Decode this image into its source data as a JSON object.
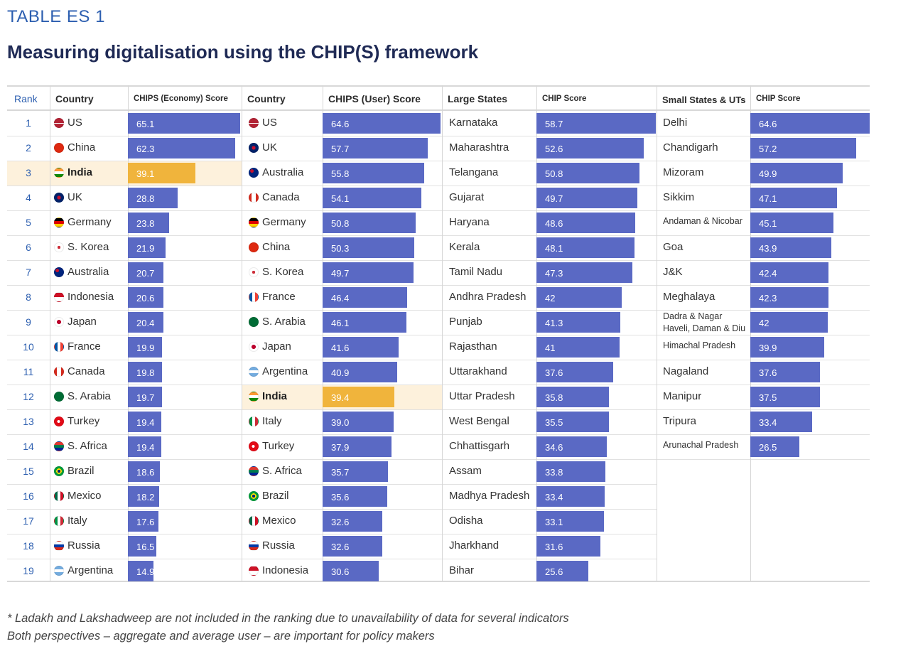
{
  "header": {
    "label": "TABLE  ES 1",
    "title": "Measuring digitalisation using the CHIP(S) framework"
  },
  "columns": {
    "rank": "Rank",
    "country1": "Country",
    "economy_score": "CHIPS (Economy) Score",
    "country2": "Country",
    "user_score": "CHIPS (User) Score",
    "large_states": "Large States",
    "chip_score1": "CHIP Score",
    "small_states": "Small States & UTs",
    "chip_score2": "CHIP Score"
  },
  "economy": [
    {
      "rank": "1",
      "country": "US",
      "score": "65.1",
      "v": 65.1,
      "flag": "us"
    },
    {
      "rank": "2",
      "country": "China",
      "score": "62.3",
      "v": 62.3,
      "flag": "cn"
    },
    {
      "rank": "3",
      "country": "India",
      "score": "39.1",
      "v": 39.1,
      "flag": "in",
      "highlight": true
    },
    {
      "rank": "4",
      "country": "UK",
      "score": "28.8",
      "v": 28.8,
      "flag": "uk"
    },
    {
      "rank": "5",
      "country": "Germany",
      "score": "23.8",
      "v": 23.8,
      "flag": "de"
    },
    {
      "rank": "6",
      "country": "S. Korea",
      "score": "21.9",
      "v": 21.9,
      "flag": "kr"
    },
    {
      "rank": "7",
      "country": "Australia",
      "score": "20.7",
      "v": 20.7,
      "flag": "au"
    },
    {
      "rank": "8",
      "country": "Indonesia",
      "score": "20.6",
      "v": 20.6,
      "flag": "id"
    },
    {
      "rank": "9",
      "country": "Japan",
      "score": "20.4",
      "v": 20.4,
      "flag": "jp"
    },
    {
      "rank": "10",
      "country": "France",
      "score": "19.9",
      "v": 19.9,
      "flag": "fr"
    },
    {
      "rank": "11",
      "country": "Canada",
      "score": "19.8",
      "v": 19.8,
      "flag": "ca"
    },
    {
      "rank": "12",
      "country": "S. Arabia",
      "score": "19.7",
      "v": 19.7,
      "flag": "sa"
    },
    {
      "rank": "13",
      "country": "Turkey",
      "score": "19.4",
      "v": 19.4,
      "flag": "tr"
    },
    {
      "rank": "14",
      "country": "S. Africa",
      "score": "19.4",
      "v": 19.4,
      "flag": "za"
    },
    {
      "rank": "15",
      "country": "Brazil",
      "score": "18.6",
      "v": 18.6,
      "flag": "br"
    },
    {
      "rank": "16",
      "country": "Mexico",
      "score": "18.2",
      "v": 18.2,
      "flag": "mx"
    },
    {
      "rank": "17",
      "country": "Italy",
      "score": "17.6",
      "v": 17.6,
      "flag": "it"
    },
    {
      "rank": "18",
      "country": "Russia",
      "score": "16.5",
      "v": 16.5,
      "flag": "ru"
    },
    {
      "rank": "19",
      "country": "Argentina",
      "score": "14.9",
      "v": 14.9,
      "flag": "ar"
    }
  ],
  "user": [
    {
      "country": "US",
      "score": "64.6",
      "v": 64.6,
      "flag": "us"
    },
    {
      "country": "UK",
      "score": "57.7",
      "v": 57.7,
      "flag": "uk"
    },
    {
      "country": "Australia",
      "score": "55.8",
      "v": 55.8,
      "flag": "au"
    },
    {
      "country": "Canada",
      "score": "54.1",
      "v": 54.1,
      "flag": "ca"
    },
    {
      "country": "Germany",
      "score": "50.8",
      "v": 50.8,
      "flag": "de"
    },
    {
      "country": "China",
      "score": "50.3",
      "v": 50.3,
      "flag": "cn"
    },
    {
      "country": "S. Korea",
      "score": "49.7",
      "v": 49.7,
      "flag": "kr"
    },
    {
      "country": "France",
      "score": "46.4",
      "v": 46.4,
      "flag": "fr"
    },
    {
      "country": "S. Arabia",
      "score": "46.1",
      "v": 46.1,
      "flag": "sa"
    },
    {
      "country": "Japan",
      "score": "41.6",
      "v": 41.6,
      "flag": "jp"
    },
    {
      "country": "Argentina",
      "score": "40.9",
      "v": 40.9,
      "flag": "ar"
    },
    {
      "country": "India",
      "score": "39.4",
      "v": 39.4,
      "flag": "in",
      "highlight": true
    },
    {
      "country": "Italy",
      "score": "39.0",
      "v": 39.0,
      "flag": "it"
    },
    {
      "country": "Turkey",
      "score": "37.9",
      "v": 37.9,
      "flag": "tr"
    },
    {
      "country": "S. Africa",
      "score": "35.7",
      "v": 35.7,
      "flag": "za"
    },
    {
      "country": "Brazil",
      "score": "35.6",
      "v": 35.6,
      "flag": "br"
    },
    {
      "country": "Mexico",
      "score": "32.6",
      "v": 32.6,
      "flag": "mx"
    },
    {
      "country": "Russia",
      "score": "32.6",
      "v": 32.6,
      "flag": "ru"
    },
    {
      "country": "Indonesia",
      "score": "30.6",
      "v": 30.6,
      "flag": "id"
    }
  ],
  "large_states": [
    {
      "name": "Karnataka",
      "score": "58.7",
      "v": 58.7
    },
    {
      "name": "Maharashtra",
      "score": "52.6",
      "v": 52.6
    },
    {
      "name": "Telangana",
      "score": "50.8",
      "v": 50.8
    },
    {
      "name": "Gujarat",
      "score": "49.7",
      "v": 49.7
    },
    {
      "name": "Haryana",
      "score": "48.6",
      "v": 48.6
    },
    {
      "name": "Kerala",
      "score": "48.1",
      "v": 48.1
    },
    {
      "name": "Tamil Nadu",
      "score": "47.3",
      "v": 47.3
    },
    {
      "name": "Andhra Pradesh",
      "score": "42",
      "v": 42
    },
    {
      "name": "Punjab",
      "score": "41.3",
      "v": 41.3
    },
    {
      "name": "Rajasthan",
      "score": "41",
      "v": 41
    },
    {
      "name": "Uttarakhand",
      "score": "37.6",
      "v": 37.6
    },
    {
      "name": "Uttar Pradesh",
      "score": "35.8",
      "v": 35.8
    },
    {
      "name": "West Bengal",
      "score": "35.5",
      "v": 35.5
    },
    {
      "name": "Chhattisgarh",
      "score": "34.6",
      "v": 34.6
    },
    {
      "name": "Assam",
      "score": "33.8",
      "v": 33.8
    },
    {
      "name": "Madhya Pradesh",
      "score": "33.4",
      "v": 33.4
    },
    {
      "name": "Odisha",
      "score": "33.1",
      "v": 33.1
    },
    {
      "name": "Jharkhand",
      "score": "31.6",
      "v": 31.6
    },
    {
      "name": "Bihar",
      "score": "25.6",
      "v": 25.6
    }
  ],
  "small_states": [
    {
      "name": "Delhi",
      "score": "64.6",
      "v": 64.6
    },
    {
      "name": "Chandigarh",
      "score": "57.2",
      "v": 57.2
    },
    {
      "name": "Mizoram",
      "score": "49.9",
      "v": 49.9
    },
    {
      "name": "Sikkim",
      "score": "47.1",
      "v": 47.1
    },
    {
      "name": "Andaman & Nicobar",
      "score": "45.1",
      "v": 45.1,
      "small": true
    },
    {
      "name": "Goa",
      "score": "43.9",
      "v": 43.9
    },
    {
      "name": "J&K",
      "score": "42.4",
      "v": 42.4
    },
    {
      "name": "Meghalaya",
      "score": "42.3",
      "v": 42.3
    },
    {
      "name": "Dadra & Nagar Haveli, Daman & Diu",
      "line1": "Dadra & Nagar",
      "line2": "Haveli, Daman & Diu",
      "score": "42",
      "v": 42,
      "two": true
    },
    {
      "name": "Himachal Pradesh",
      "score": "39.9",
      "v": 39.9,
      "small": true
    },
    {
      "name": "Nagaland",
      "score": "37.6",
      "v": 37.6
    },
    {
      "name": "Manipur",
      "score": "37.5",
      "v": 37.5
    },
    {
      "name": "Tripura",
      "score": "33.4",
      "v": 33.4
    },
    {
      "name": "Arunachal Pradesh",
      "score": "26.5",
      "v": 26.5,
      "small": true
    }
  ],
  "footnotes": [
    "* Ladakh and Lakshadweep are not included in the ranking due to unavailability of data for several indicators",
    "Both perspectives – aggregate and average user – are important for policy makers"
  ],
  "colors": {
    "bar": "#5a69c4",
    "highlight_bar": "#f0b43c",
    "highlight_row": "#fdf1dc",
    "accent": "#2d5fb0",
    "title": "#1f2a55"
  }
}
